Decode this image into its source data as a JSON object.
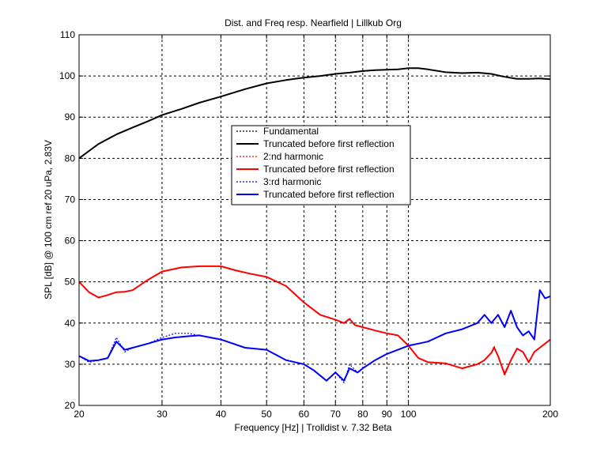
{
  "chart_data": {
    "type": "line",
    "title": "Dist. and Freq resp. Nearfield | Lillkub Org",
    "xlabel": "Frequency [Hz] | Trolldist v. 7.32 Beta",
    "ylabel": "SPL [dB] @ 100 cm ref 20 uPa, 2.83V",
    "xscale": "log",
    "xlim": [
      20,
      200
    ],
    "ylim": [
      20,
      110
    ],
    "grid": true,
    "legend_position": "center",
    "x_ticks": [
      20,
      30,
      40,
      50,
      60,
      70,
      80,
      90,
      100,
      200
    ],
    "x_tick_labels": [
      "20",
      "30",
      "40",
      "50",
      "60",
      "70",
      "80",
      "90",
      "100",
      "200"
    ],
    "y_ticks": [
      20,
      30,
      40,
      50,
      60,
      70,
      80,
      90,
      100,
      110
    ],
    "y_tick_labels": [
      "20",
      "30",
      "40",
      "50",
      "60",
      "70",
      "80",
      "90",
      "100",
      "110"
    ],
    "series": [
      {
        "name": "Fundamental",
        "color": "#000000",
        "style": "dotted",
        "x": [
          20,
          21,
          22,
          24,
          26,
          28,
          30,
          33,
          36,
          40,
          45,
          50,
          55,
          60,
          65,
          70,
          75,
          80,
          85,
          90,
          95,
          100,
          105,
          110,
          120,
          130,
          140,
          150,
          160,
          170,
          180,
          190,
          200
        ],
        "y": [
          80,
          81.8,
          83.5,
          85.8,
          87.5,
          89,
          90.5,
          92,
          93.5,
          95,
          96.8,
          98.2,
          99,
          99.6,
          100,
          100.5,
          100.8,
          101.2,
          101.4,
          101.5,
          101.6,
          101.9,
          101.9,
          101.6,
          100.9,
          100.7,
          100.8,
          100.5,
          99.8,
          99.3,
          99.3,
          99.4,
          99.2
        ]
      },
      {
        "name": "Truncated before first reflection",
        "color": "#000000",
        "style": "solid",
        "x": [
          20,
          21,
          22,
          24,
          26,
          28,
          30,
          33,
          36,
          40,
          45,
          50,
          55,
          60,
          65,
          70,
          75,
          80,
          85,
          90,
          95,
          100,
          105,
          110,
          120,
          130,
          140,
          150,
          160,
          170,
          180,
          190,
          200
        ],
        "y": [
          80,
          81.8,
          83.5,
          85.8,
          87.5,
          89,
          90.5,
          92,
          93.5,
          95,
          96.8,
          98.2,
          99,
          99.6,
          100,
          100.5,
          100.8,
          101.2,
          101.4,
          101.5,
          101.6,
          101.9,
          101.9,
          101.6,
          100.9,
          100.7,
          100.8,
          100.5,
          99.8,
          99.3,
          99.3,
          99.4,
          99.2
        ]
      },
      {
        "name": "2:nd harmonic",
        "color": "#ff0000",
        "style": "dotted",
        "x": [
          20,
          21,
          22,
          23,
          24,
          25,
          26,
          28,
          30,
          33,
          36,
          40,
          43,
          46,
          50,
          55,
          60,
          65,
          70,
          73,
          75,
          77,
          80,
          85,
          90,
          95,
          100,
          105,
          110,
          120,
          130,
          140,
          145,
          150,
          152,
          155,
          160,
          165,
          170,
          175,
          180,
          185,
          190,
          195,
          200
        ],
        "y": [
          50,
          47.5,
          46.2,
          46.8,
          47.5,
          47.6,
          48,
          50.5,
          52.5,
          53.5,
          53.8,
          53.8,
          52.8,
          52,
          51.2,
          49,
          45,
          42,
          40.8,
          40,
          41.2,
          39.5,
          39,
          38.2,
          37.5,
          37,
          34.5,
          31.5,
          30.5,
          30.2,
          29,
          30,
          31,
          32.8,
          34.5,
          32,
          28,
          31,
          33.8,
          33,
          30.5,
          33,
          34,
          35,
          36
        ]
      },
      {
        "name": "Truncated before first reflection",
        "color": "#ff0000",
        "style": "solid",
        "x": [
          20,
          21,
          22,
          23,
          24,
          25,
          26,
          28,
          30,
          33,
          36,
          40,
          43,
          46,
          50,
          55,
          60,
          65,
          70,
          73,
          75,
          77,
          80,
          85,
          90,
          95,
          100,
          105,
          110,
          120,
          130,
          140,
          145,
          150,
          152,
          155,
          160,
          165,
          170,
          175,
          180,
          185,
          190,
          195,
          200
        ],
        "y": [
          50,
          47.5,
          46.2,
          46.8,
          47.5,
          47.6,
          48,
          50.5,
          52.5,
          53.5,
          53.8,
          53.8,
          52.8,
          52,
          51.2,
          49,
          45,
          42,
          40.8,
          40,
          41,
          39.5,
          39,
          38.2,
          37.5,
          37,
          34.5,
          31.5,
          30.5,
          30.2,
          29,
          30,
          31,
          32.8,
          34,
          32,
          27.5,
          31,
          33.8,
          33,
          30.5,
          33,
          34,
          35,
          36
        ]
      },
      {
        "name": "3:rd harmonic",
        "color": "#0000ff",
        "style": "dotted",
        "x": [
          20,
          21,
          22,
          23,
          24,
          25,
          26,
          28,
          30,
          32,
          34,
          36,
          40,
          45,
          50,
          55,
          60,
          63,
          67,
          70,
          73,
          75,
          78,
          80,
          85,
          90,
          95,
          100,
          105,
          110,
          120,
          130,
          140,
          145,
          150,
          155,
          160,
          165,
          170,
          175,
          180,
          185,
          190,
          195,
          200
        ],
        "y": [
          32,
          30.5,
          31,
          31.5,
          36.5,
          33,
          34,
          35,
          36.5,
          37.5,
          37.5,
          37,
          36,
          34,
          33.5,
          31,
          30,
          28.5,
          26,
          28,
          25.5,
          30,
          28,
          29,
          31,
          32.5,
          33.5,
          34.5,
          35,
          35.5,
          37.5,
          38.5,
          40,
          42,
          40,
          42,
          39,
          43,
          39,
          37,
          38,
          36,
          48,
          46,
          46.5
        ]
      },
      {
        "name": "Truncated before first reflection",
        "color": "#0000ff",
        "style": "solid",
        "x": [
          20,
          21,
          22,
          23,
          24,
          25,
          26,
          28,
          30,
          32,
          34,
          36,
          40,
          45,
          50,
          55,
          60,
          63,
          67,
          70,
          73,
          75,
          78,
          80,
          85,
          90,
          95,
          100,
          105,
          110,
          120,
          130,
          140,
          145,
          150,
          155,
          160,
          165,
          170,
          175,
          180,
          185,
          190,
          195,
          200
        ],
        "y": [
          32,
          30.8,
          31,
          31.5,
          35.5,
          33.5,
          34,
          35,
          36,
          36.5,
          36.8,
          37,
          36,
          34,
          33.5,
          31,
          30,
          28.5,
          26,
          28,
          26,
          29,
          28,
          29,
          31,
          32.5,
          33.5,
          34.5,
          35,
          35.5,
          37.5,
          38.5,
          40,
          42,
          40,
          42,
          39,
          43,
          39,
          37,
          38,
          36,
          48,
          46,
          46.5
        ]
      }
    ]
  }
}
